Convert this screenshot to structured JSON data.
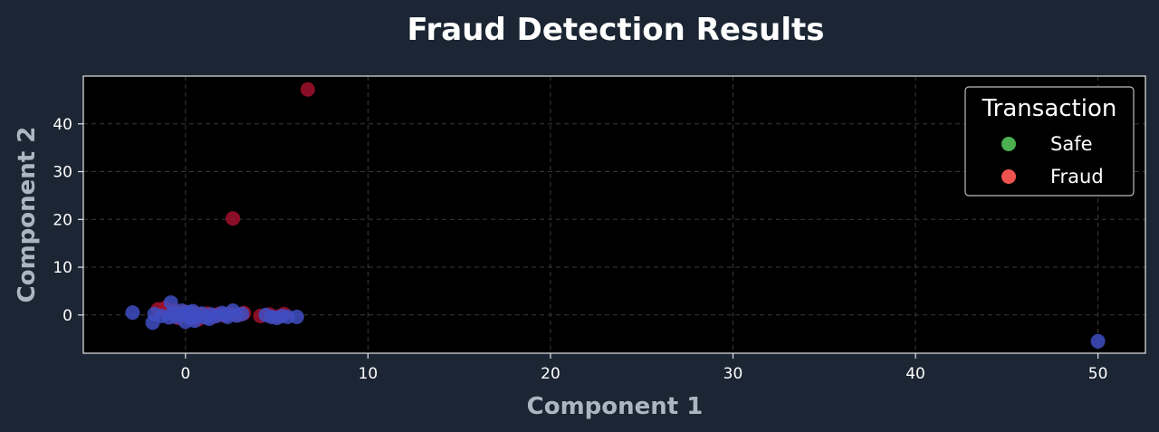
{
  "chart_data": {
    "type": "scatter",
    "title": "Fraud Detection Results",
    "xlabel": "Component 1",
    "ylabel": "Component 2",
    "xlim": [
      -5.6,
      52.6
    ],
    "ylim": [
      -8,
      50
    ],
    "xticks": [
      0,
      10,
      20,
      30,
      40,
      50
    ],
    "yticks": [
      0,
      10,
      20,
      30,
      40
    ],
    "grid": true,
    "legend": {
      "title": "Transaction",
      "placement": "top-right",
      "entries": [
        {
          "name": "Safe",
          "color": "#4caf50"
        },
        {
          "name": "Fraud",
          "color": "#ef5350"
        }
      ]
    },
    "series": [
      {
        "name": "Fraud",
        "color": "#a3102e",
        "points": [
          [
            6.7,
            47.2
          ],
          [
            2.6,
            20.2
          ],
          [
            -1.5,
            1.2
          ],
          [
            -1.1,
            1.5
          ],
          [
            -0.9,
            0.7
          ],
          [
            -0.6,
            0.9
          ],
          [
            -0.3,
            0.2
          ],
          [
            0.0,
            0.6
          ],
          [
            0.2,
            0.0
          ],
          [
            0.5,
            0.4
          ],
          [
            0.8,
            0.1
          ],
          [
            1.0,
            -0.3
          ],
          [
            1.2,
            0.3
          ],
          [
            1.5,
            -0.4
          ],
          [
            1.8,
            0.2
          ],
          [
            2.1,
            -0.1
          ],
          [
            2.4,
            0.3
          ],
          [
            2.9,
            0.0
          ],
          [
            3.2,
            0.4
          ],
          [
            4.1,
            -0.2
          ],
          [
            4.6,
            0.1
          ],
          [
            5.1,
            -0.3
          ],
          [
            5.4,
            0.2
          ],
          [
            -0.4,
            -0.6
          ],
          [
            0.7,
            -0.9
          ]
        ]
      },
      {
        "name": "Safe",
        "color": "#3f4ec2",
        "points": [
          [
            50.0,
            -5.5
          ],
          [
            -2.9,
            0.5
          ],
          [
            -1.8,
            -1.6
          ],
          [
            -1.7,
            0.2
          ],
          [
            -1.3,
            -0.2
          ],
          [
            -0.8,
            2.6
          ],
          [
            -0.7,
            0.4
          ],
          [
            -0.5,
            -0.4
          ],
          [
            -0.2,
            0.9
          ],
          [
            0.0,
            -1.4
          ],
          [
            0.1,
            0.2
          ],
          [
            0.3,
            -0.6
          ],
          [
            0.4,
            0.8
          ],
          [
            0.6,
            -0.2
          ],
          [
            0.5,
            -1.2
          ],
          [
            0.9,
            0.3
          ],
          [
            1.1,
            -0.5
          ],
          [
            1.4,
            0.1
          ],
          [
            1.7,
            -0.2
          ],
          [
            2.0,
            0.4
          ],
          [
            2.3,
            -0.4
          ],
          [
            2.6,
            0.9
          ],
          [
            2.8,
            -0.1
          ],
          [
            3.1,
            0.2
          ],
          [
            4.4,
            0.0
          ],
          [
            4.7,
            -0.4
          ],
          [
            5.0,
            -0.6
          ],
          [
            5.3,
            -0.2
          ],
          [
            5.6,
            -0.4
          ],
          [
            6.1,
            -0.4
          ],
          [
            -0.9,
            -0.5
          ],
          [
            -0.3,
            0.1
          ],
          [
            0.2,
            0.6
          ],
          [
            1.3,
            -0.8
          ],
          [
            2.2,
            0.1
          ]
        ]
      }
    ]
  }
}
